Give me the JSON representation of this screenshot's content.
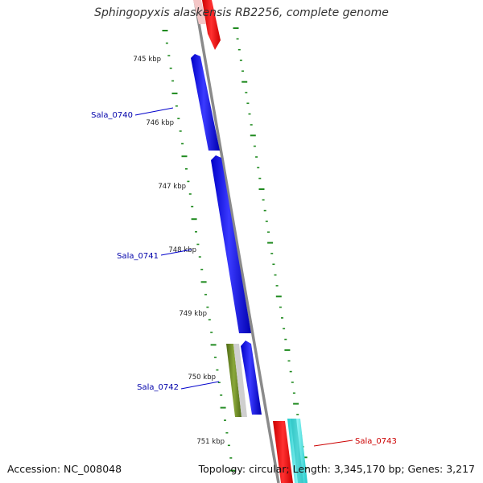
{
  "title": "Sphingopyxis alaskensis RB2256, complete genome",
  "accession_text": "Accession: NC_008048",
  "summary_text": "Topology: circular; Length: 3,345,170 bp; Genes: 3,217",
  "ruler": {
    "ticks": [
      "745 kbp",
      "746 kbp",
      "747 kbp",
      "748 kbp",
      "749 kbp",
      "750 kbp",
      "751 kbp"
    ]
  },
  "genes": [
    {
      "label": "Sala_0740",
      "color": "#0000ff",
      "label_color": "#0000aa",
      "strand": "forward"
    },
    {
      "label": "Sala_0741",
      "color": "#0000ff",
      "label_color": "#0000aa",
      "strand": "forward"
    },
    {
      "label": "Sala_0742",
      "color": "#0000ff",
      "label_color": "#0000aa",
      "strand": "forward"
    },
    {
      "label": "Sala_0743",
      "color": "#ff0000",
      "label_color": "#cc0000",
      "strand": "reverse"
    }
  ],
  "colors": {
    "backbone": "#8a8a8a",
    "cds_forward": "#0000ff",
    "cds_reverse": "#ff0000",
    "rna": "#2ee6e6",
    "gc_skew": "#6b8e23",
    "gc_content": "#c8c8c8",
    "ruler_ticks": "#1f8a1f"
  }
}
